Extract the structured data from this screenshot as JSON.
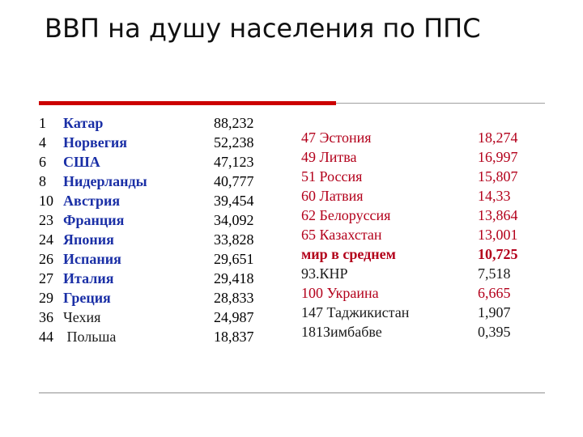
{
  "title": "ВВП на душу населения по ППС",
  "colors": {
    "accent": "#cc0000",
    "blue": "#1a2fa6",
    "red": "#b3001b"
  },
  "left_rows": [
    {
      "rank": "1",
      "country": "Катар",
      "value": "88,232",
      "style": "blue"
    },
    {
      "rank": "4",
      "country": "Норвегия",
      "value": "52,238",
      "style": "blue"
    },
    {
      "rank": "6",
      "country": "США",
      "value": "47,123",
      "style": "blue"
    },
    {
      "rank": "8",
      "country": "Нидерланды",
      "value": "40,777",
      "style": "blue"
    },
    {
      "rank": "10",
      "country": "Австрия",
      "value": "39,454",
      "style": "blue"
    },
    {
      "rank": "23",
      "country": "Франция",
      "value": "34,092",
      "style": "blue"
    },
    {
      "rank": "24",
      "country": "Япония",
      "value": "33,828",
      "style": "blue"
    },
    {
      "rank": "26",
      "country": "Испания",
      "value": "29,651",
      "style": "blue"
    },
    {
      "rank": "27",
      "country": "Италия",
      "value": "29,418",
      "style": "blue"
    },
    {
      "rank": "29",
      "country": "Греция",
      "value": "28,833",
      "style": "blue"
    },
    {
      "rank": "36",
      "country": "Чехия",
      "value": "24,987",
      "style": "dark"
    },
    {
      "rank": "44",
      "country": " Польша",
      "value": "18,837",
      "style": "dark"
    }
  ],
  "right_rows": [
    {
      "label": "47 Эстония",
      "value": "18,274",
      "style": "red-n"
    },
    {
      "label": "49 Литва",
      "value": "16,997",
      "style": "red-n"
    },
    {
      "label": "51 Россия",
      "value": "15,807",
      "style": "red-n"
    },
    {
      "label": "60 Латвия",
      "value": "14,33",
      "style": "red-n"
    },
    {
      "label": "62 Белоруссия",
      "value": "13,864",
      "style": "red-n"
    },
    {
      "label": "65 Казахстан",
      "value": "13,001",
      "style": "red-n"
    },
    {
      "label": "мир в среднем",
      "value": "10,725",
      "style": "red"
    },
    {
      "label": "93.КНР",
      "value": "7,518",
      "style": "dark"
    },
    {
      "label": "100 Украина",
      "value": "6,665",
      "style": "red-n"
    },
    {
      "label": "147 Таджикистан",
      "value": "1,907",
      "style": "dark"
    },
    {
      "label": "181Зимбабве",
      "value": "0,395",
      "style": "dark"
    }
  ]
}
